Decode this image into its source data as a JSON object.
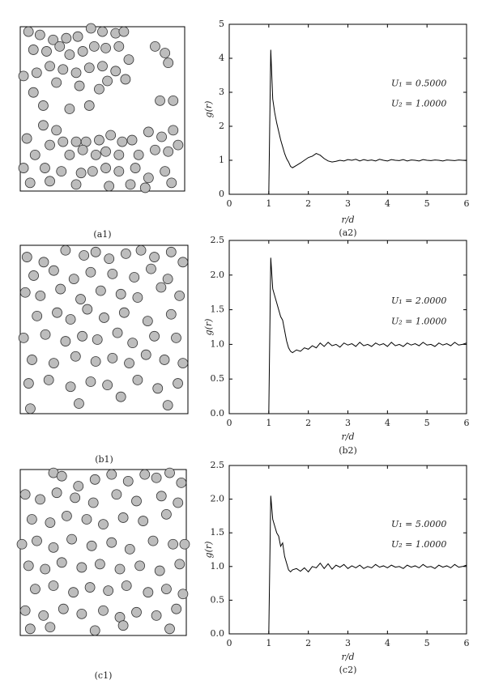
{
  "chart_data": [
    {
      "type": "scatter",
      "label": "(a1)",
      "color": "#bdbdbd",
      "xlim": [
        0,
        1
      ],
      "ylim": [
        0,
        1
      ],
      "x": [
        0.05,
        0.12,
        0.2,
        0.28,
        0.35,
        0.43,
        0.5,
        0.58,
        0.63,
        0.08,
        0.16,
        0.24,
        0.3,
        0.38,
        0.45,
        0.52,
        0.6,
        0.66,
        0.02,
        0.1,
        0.18,
        0.26,
        0.34,
        0.42,
        0.5,
        0.58,
        0.64,
        0.08,
        0.22,
        0.36,
        0.48,
        0.53,
        0.82,
        0.88,
        0.9,
        0.85,
        0.93,
        0.14,
        0.3,
        0.42,
        0.14,
        0.22,
        0.04,
        0.18,
        0.26,
        0.34,
        0.4,
        0.48,
        0.55,
        0.62,
        0.68,
        0.78,
        0.86,
        0.93,
        0.09,
        0.3,
        0.38,
        0.46,
        0.52,
        0.6,
        0.72,
        0.82,
        0.9,
        0.96,
        0.02,
        0.15,
        0.25,
        0.37,
        0.44,
        0.52,
        0.6,
        0.7,
        0.78,
        0.88,
        0.06,
        0.18,
        0.34,
        0.54,
        0.67,
        0.76,
        0.92
      ],
      "y": [
        0.97,
        0.95,
        0.92,
        0.93,
        0.94,
        0.99,
        0.97,
        0.96,
        0.97,
        0.86,
        0.85,
        0.88,
        0.83,
        0.85,
        0.88,
        0.87,
        0.88,
        0.8,
        0.7,
        0.72,
        0.76,
        0.74,
        0.72,
        0.75,
        0.76,
        0.73,
        0.68,
        0.6,
        0.66,
        0.64,
        0.62,
        0.67,
        0.88,
        0.84,
        0.78,
        0.55,
        0.55,
        0.52,
        0.5,
        0.52,
        0.4,
        0.37,
        0.32,
        0.28,
        0.3,
        0.3,
        0.3,
        0.31,
        0.34,
        0.3,
        0.31,
        0.36,
        0.33,
        0.37,
        0.22,
        0.22,
        0.25,
        0.22,
        0.24,
        0.22,
        0.22,
        0.25,
        0.24,
        0.28,
        0.14,
        0.14,
        0.12,
        0.11,
        0.12,
        0.14,
        0.12,
        0.14,
        0.08,
        0.12,
        0.05,
        0.06,
        0.04,
        0.03,
        0.04,
        0.02,
        0.05
      ]
    },
    {
      "type": "line",
      "label": "(a2)",
      "xlabel": "r/d",
      "ylabel": "g(r)",
      "color": "#000000",
      "annotations": [
        "U₁ = 0.5000",
        "U₂ = 1.0000"
      ],
      "xlim": [
        0,
        6
      ],
      "xticks": [
        0,
        1,
        2,
        3,
        4,
        5,
        6
      ],
      "ylim": [
        0,
        5
      ],
      "yticks": [
        0,
        1,
        2,
        3,
        4,
        5
      ],
      "x": [
        0,
        0.99,
        1.0,
        1.05,
        1.1,
        1.15,
        1.2,
        1.25,
        1.3,
        1.35,
        1.4,
        1.45,
        1.5,
        1.55,
        1.6,
        1.7,
        1.8,
        1.9,
        2.0,
        2.1,
        2.2,
        2.3,
        2.4,
        2.5,
        2.6,
        2.7,
        2.8,
        2.9,
        3.0,
        3.1,
        3.2,
        3.3,
        3.4,
        3.5,
        3.6,
        3.7,
        3.8,
        3.9,
        4.0,
        4.1,
        4.2,
        4.3,
        4.4,
        4.5,
        4.6,
        4.7,
        4.8,
        4.9,
        5.0,
        5.1,
        5.2,
        5.3,
        5.4,
        5.5,
        5.6,
        5.7,
        5.8,
        5.9,
        6.0
      ],
      "values": [
        0,
        0,
        0,
        4.25,
        2.8,
        2.4,
        2.1,
        1.85,
        1.6,
        1.4,
        1.2,
        1.05,
        0.95,
        0.82,
        0.78,
        0.85,
        0.92,
        1.0,
        1.08,
        1.12,
        1.2,
        1.15,
        1.05,
        0.98,
        0.95,
        0.97,
        1.0,
        0.98,
        1.02,
        1.0,
        1.03,
        0.98,
        1.02,
        0.99,
        1.01,
        0.98,
        1.03,
        1.0,
        0.98,
        1.02,
        1.0,
        0.99,
        1.02,
        0.98,
        1.01,
        1.0,
        0.98,
        1.02,
        1.0,
        0.99,
        1.01,
        1.0,
        0.98,
        1.01,
        1.0,
        0.99,
        1.01,
        1.0,
        0.99
      ]
    },
    {
      "type": "scatter",
      "label": "(b1)",
      "color": "#bdbdbd",
      "xlim": [
        0,
        1
      ],
      "ylim": [
        0,
        1
      ],
      "x": [
        0.04,
        0.14,
        0.27,
        0.38,
        0.45,
        0.53,
        0.63,
        0.72,
        0.8,
        0.9,
        0.97,
        0.08,
        0.2,
        0.32,
        0.42,
        0.55,
        0.68,
        0.78,
        0.88,
        0.03,
        0.12,
        0.24,
        0.36,
        0.48,
        0.6,
        0.7,
        0.84,
        0.95,
        0.1,
        0.22,
        0.3,
        0.4,
        0.5,
        0.62,
        0.76,
        0.9,
        0.02,
        0.15,
        0.27,
        0.37,
        0.46,
        0.58,
        0.67,
        0.8,
        0.93,
        0.07,
        0.2,
        0.33,
        0.45,
        0.55,
        0.65,
        0.75,
        0.86,
        0.97,
        0.05,
        0.17,
        0.3,
        0.42,
        0.52,
        0.7,
        0.82,
        0.94,
        0.06,
        0.35,
        0.6,
        0.88
      ],
      "y": [
        0.93,
        0.9,
        0.97,
        0.94,
        0.96,
        0.92,
        0.95,
        0.97,
        0.93,
        0.96,
        0.9,
        0.82,
        0.85,
        0.8,
        0.84,
        0.83,
        0.81,
        0.86,
        0.8,
        0.72,
        0.7,
        0.74,
        0.68,
        0.73,
        0.71,
        0.69,
        0.75,
        0.7,
        0.58,
        0.6,
        0.56,
        0.62,
        0.57,
        0.6,
        0.55,
        0.59,
        0.45,
        0.47,
        0.43,
        0.46,
        0.44,
        0.48,
        0.42,
        0.46,
        0.45,
        0.32,
        0.3,
        0.34,
        0.31,
        0.33,
        0.3,
        0.35,
        0.32,
        0.3,
        0.18,
        0.2,
        0.16,
        0.19,
        0.17,
        0.2,
        0.15,
        0.18,
        0.03,
        0.06,
        0.1,
        0.05
      ]
    },
    {
      "type": "line",
      "label": "(b2)",
      "xlabel": "r/d",
      "ylabel": "g(r)",
      "color": "#000000",
      "annotations": [
        "U₁ = 2.0000",
        "U₂ = 1.0000"
      ],
      "xlim": [
        0,
        6
      ],
      "xticks": [
        0,
        1,
        2,
        3,
        4,
        5,
        6
      ],
      "ylim": [
        0,
        2.5
      ],
      "yticks": [
        {
          "value": 0,
          "label": "0.0"
        },
        0.5,
        {
          "value": 1,
          "label": "1.0"
        },
        1.5,
        {
          "value": 2,
          "label": "2.0"
        },
        2.5
      ],
      "x": [
        0,
        0.99,
        1.0,
        1.05,
        1.1,
        1.15,
        1.2,
        1.25,
        1.3,
        1.35,
        1.4,
        1.45,
        1.5,
        1.55,
        1.6,
        1.7,
        1.8,
        1.9,
        2.0,
        2.1,
        2.2,
        2.3,
        2.4,
        2.5,
        2.6,
        2.7,
        2.8,
        2.9,
        3.0,
        3.1,
        3.2,
        3.3,
        3.4,
        3.5,
        3.6,
        3.7,
        3.8,
        3.9,
        4.0,
        4.1,
        4.2,
        4.3,
        4.4,
        4.5,
        4.6,
        4.7,
        4.8,
        4.9,
        5.0,
        5.1,
        5.2,
        5.3,
        5.4,
        5.5,
        5.6,
        5.7,
        5.8,
        5.9,
        6.0
      ],
      "values": [
        0,
        0,
        0,
        2.25,
        1.8,
        1.7,
        1.6,
        1.5,
        1.4,
        1.35,
        1.2,
        1.05,
        0.95,
        0.9,
        0.88,
        0.92,
        0.9,
        0.95,
        0.93,
        0.98,
        0.95,
        1.02,
        0.97,
        1.03,
        0.98,
        1.0,
        0.96,
        1.02,
        0.99,
        1.01,
        0.97,
        1.03,
        0.98,
        1.0,
        0.97,
        1.02,
        0.99,
        1.01,
        0.97,
        1.03,
        0.98,
        1.0,
        0.97,
        1.02,
        0.99,
        1.01,
        0.98,
        1.03,
        0.99,
        1.0,
        0.97,
        1.02,
        0.99,
        1.01,
        0.98,
        1.03,
        0.99,
        1.0,
        1.02
      ]
    },
    {
      "type": "scatter",
      "label": "(c1)",
      "color": "#bdbdbd",
      "xlim": [
        0,
        1
      ],
      "ylim": [
        0,
        1
      ],
      "x": [
        0.2,
        0.25,
        0.45,
        0.55,
        0.65,
        0.75,
        0.82,
        0.9,
        0.97,
        0.35,
        0.03,
        0.12,
        0.22,
        0.33,
        0.44,
        0.58,
        0.7,
        0.85,
        0.95,
        0.07,
        0.18,
        0.28,
        0.4,
        0.5,
        0.62,
        0.74,
        0.88,
        0.99,
        0.01,
        0.1,
        0.2,
        0.31,
        0.43,
        0.55,
        0.66,
        0.8,
        0.92,
        0.05,
        0.15,
        0.25,
        0.37,
        0.48,
        0.6,
        0.72,
        0.84,
        0.96,
        0.09,
        0.2,
        0.32,
        0.42,
        0.53,
        0.64,
        0.77,
        0.88,
        0.98,
        0.03,
        0.14,
        0.26,
        0.37,
        0.5,
        0.6,
        0.7,
        0.82,
        0.94,
        0.06,
        0.18,
        0.45,
        0.62,
        0.9
      ],
      "y": [
        0.98,
        0.96,
        0.94,
        0.97,
        0.93,
        0.97,
        0.95,
        0.98,
        0.92,
        0.9,
        0.85,
        0.82,
        0.86,
        0.83,
        0.8,
        0.85,
        0.81,
        0.84,
        0.8,
        0.7,
        0.68,
        0.72,
        0.7,
        0.67,
        0.71,
        0.69,
        0.73,
        0.55,
        0.55,
        0.57,
        0.53,
        0.58,
        0.54,
        0.56,
        0.52,
        0.57,
        0.55,
        0.42,
        0.4,
        0.44,
        0.41,
        0.43,
        0.4,
        0.42,
        0.39,
        0.43,
        0.28,
        0.3,
        0.26,
        0.29,
        0.27,
        0.3,
        0.26,
        0.28,
        0.25,
        0.15,
        0.12,
        0.16,
        0.13,
        0.15,
        0.11,
        0.14,
        0.12,
        0.16,
        0.04,
        0.05,
        0.03,
        0.06,
        0.04
      ]
    },
    {
      "type": "line",
      "label": "(c2)",
      "xlabel": "r/d",
      "ylabel": "g(r)",
      "color": "#000000",
      "annotations": [
        "U₁ = 5.0000",
        "U₂ = 1.0000"
      ],
      "xlim": [
        0,
        6
      ],
      "xticks": [
        0,
        1,
        2,
        3,
        4,
        5,
        6
      ],
      "ylim": [
        0,
        2.5
      ],
      "yticks": [
        {
          "value": 0,
          "label": "0.0"
        },
        0.5,
        {
          "value": 1,
          "label": "1.0"
        },
        1.5,
        {
          "value": 2,
          "label": "2.0"
        },
        2.5
      ],
      "x": [
        0,
        0.99,
        1.0,
        1.05,
        1.1,
        1.15,
        1.2,
        1.25,
        1.3,
        1.35,
        1.4,
        1.45,
        1.5,
        1.55,
        1.6,
        1.7,
        1.8,
        1.9,
        2.0,
        2.1,
        2.2,
        2.3,
        2.4,
        2.5,
        2.6,
        2.7,
        2.8,
        2.9,
        3.0,
        3.1,
        3.2,
        3.3,
        3.4,
        3.5,
        3.6,
        3.7,
        3.8,
        3.9,
        4.0,
        4.1,
        4.2,
        4.3,
        4.4,
        4.5,
        4.6,
        4.7,
        4.8,
        4.9,
        5.0,
        5.1,
        5.2,
        5.3,
        5.4,
        5.5,
        5.6,
        5.7,
        5.8,
        5.9,
        6.0
      ],
      "values": [
        0,
        0,
        0,
        2.05,
        1.7,
        1.6,
        1.5,
        1.45,
        1.3,
        1.35,
        1.15,
        1.05,
        0.95,
        0.92,
        0.95,
        0.97,
        0.93,
        0.98,
        0.92,
        1.0,
        0.98,
        1.05,
        0.97,
        1.04,
        0.96,
        1.02,
        0.99,
        1.03,
        0.97,
        1.01,
        0.98,
        1.02,
        0.97,
        1.0,
        0.98,
        1.03,
        0.99,
        1.01,
        0.98,
        1.02,
        0.99,
        1.0,
        0.97,
        1.02,
        0.99,
        1.01,
        0.98,
        1.03,
        0.99,
        1.0,
        0.97,
        1.02,
        0.99,
        1.01,
        0.98,
        1.03,
        0.99,
        1.0,
        1.02
      ]
    }
  ]
}
